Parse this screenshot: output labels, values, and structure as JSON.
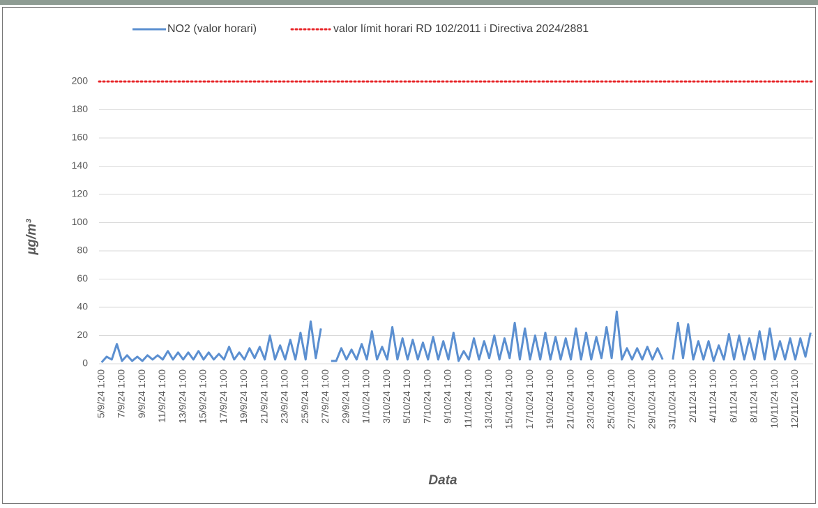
{
  "chart_data": {
    "type": "line",
    "x_title": "Data",
    "y_title": "µg/m³",
    "ylim": [
      0,
      200
    ],
    "yticks": [
      0,
      20,
      40,
      60,
      80,
      100,
      120,
      140,
      160,
      180,
      200
    ],
    "grid": true,
    "legend": "top",
    "categories": [
      "5/9/24 1:00",
      null,
      null,
      null,
      "7/9/24 1:00",
      null,
      null,
      null,
      "9/9/24 1:00",
      null,
      null,
      null,
      "11/9/24 1:00",
      null,
      null,
      null,
      "13/9/24 1:00",
      null,
      null,
      null,
      "15/9/24 1:00",
      null,
      null,
      null,
      "17/9/24 1:00",
      null,
      null,
      null,
      "19/9/24 1:00",
      null,
      null,
      null,
      "21/9/24 1:00",
      null,
      null,
      null,
      "23/9/24 1:00",
      null,
      null,
      null,
      "25/9/24 1:00",
      null,
      null,
      null,
      "27/9/24 1:00",
      null,
      null,
      null,
      "29/9/24 1:00",
      null,
      null,
      null,
      "1/10/24 1:00",
      null,
      null,
      null,
      "3/10/24 1:00",
      null,
      null,
      null,
      "5/10/24 1:00",
      null,
      null,
      null,
      "7/10/24 1:00",
      null,
      null,
      null,
      "9/10/24 1:00",
      null,
      null,
      null,
      "11/10/24 1:00",
      null,
      null,
      null,
      "13/10/24 1:00",
      null,
      null,
      null,
      "15/10/24 1:00",
      null,
      null,
      null,
      "17/10/24 1:00",
      null,
      null,
      null,
      "19/10/24 1:00",
      null,
      null,
      null,
      "21/10/24 1:00",
      null,
      null,
      null,
      "23/10/24 1:00",
      null,
      null,
      null,
      "25/10/24 1:00",
      null,
      null,
      null,
      "27/10/24 1:00",
      null,
      null,
      null,
      "29/10/24 1:00",
      null,
      null,
      null,
      "31/10/24 1:00",
      null,
      null,
      null,
      "2/11/24 1:00",
      null,
      null,
      null,
      "4/11/24 1:00",
      null,
      null,
      null,
      "6/11/24 1:00",
      null,
      null,
      null,
      "8/11/24 1:00",
      null,
      null,
      null,
      "10/11/24 1:00",
      null,
      null,
      null,
      "12/11/24 1:00",
      null,
      null,
      null
    ],
    "series": [
      {
        "name": "NO2 (valor horari)",
        "color": "#5b8fd0",
        "values": [
          1,
          5,
          3,
          14,
          2,
          6,
          2,
          5,
          2,
          6,
          3,
          6,
          3,
          9,
          3,
          8,
          3,
          8,
          3,
          9,
          3,
          8,
          3,
          7,
          3,
          12,
          3,
          8,
          3,
          11,
          4,
          12,
          3,
          20,
          3,
          13,
          3,
          17,
          3,
          22,
          3,
          30,
          4,
          25,
          null,
          2,
          2,
          11,
          3,
          10,
          3,
          14,
          3,
          23,
          3,
          12,
          3,
          26,
          3,
          18,
          3,
          17,
          3,
          15,
          3,
          19,
          3,
          16,
          3,
          22,
          2,
          9,
          3,
          18,
          3,
          16,
          4,
          20,
          3,
          18,
          4,
          29,
          3,
          25,
          3,
          20,
          3,
          22,
          3,
          19,
          3,
          18,
          3,
          25,
          3,
          22,
          3,
          19,
          4,
          26,
          4,
          37,
          3,
          11,
          3,
          11,
          3,
          12,
          3,
          11,
          3,
          null,
          3,
          29,
          4,
          28,
          3,
          16,
          3,
          16,
          2,
          13,
          3,
          21,
          3,
          20,
          3,
          18,
          3,
          23,
          3,
          25,
          3,
          16,
          3,
          18,
          3,
          18,
          5,
          22
        ]
      }
    ],
    "reference_lines": [
      {
        "name": "valor límit horari RD 102/2011 i Directiva 2024/2881",
        "value": 200,
        "color": "#e8262a"
      }
    ]
  }
}
